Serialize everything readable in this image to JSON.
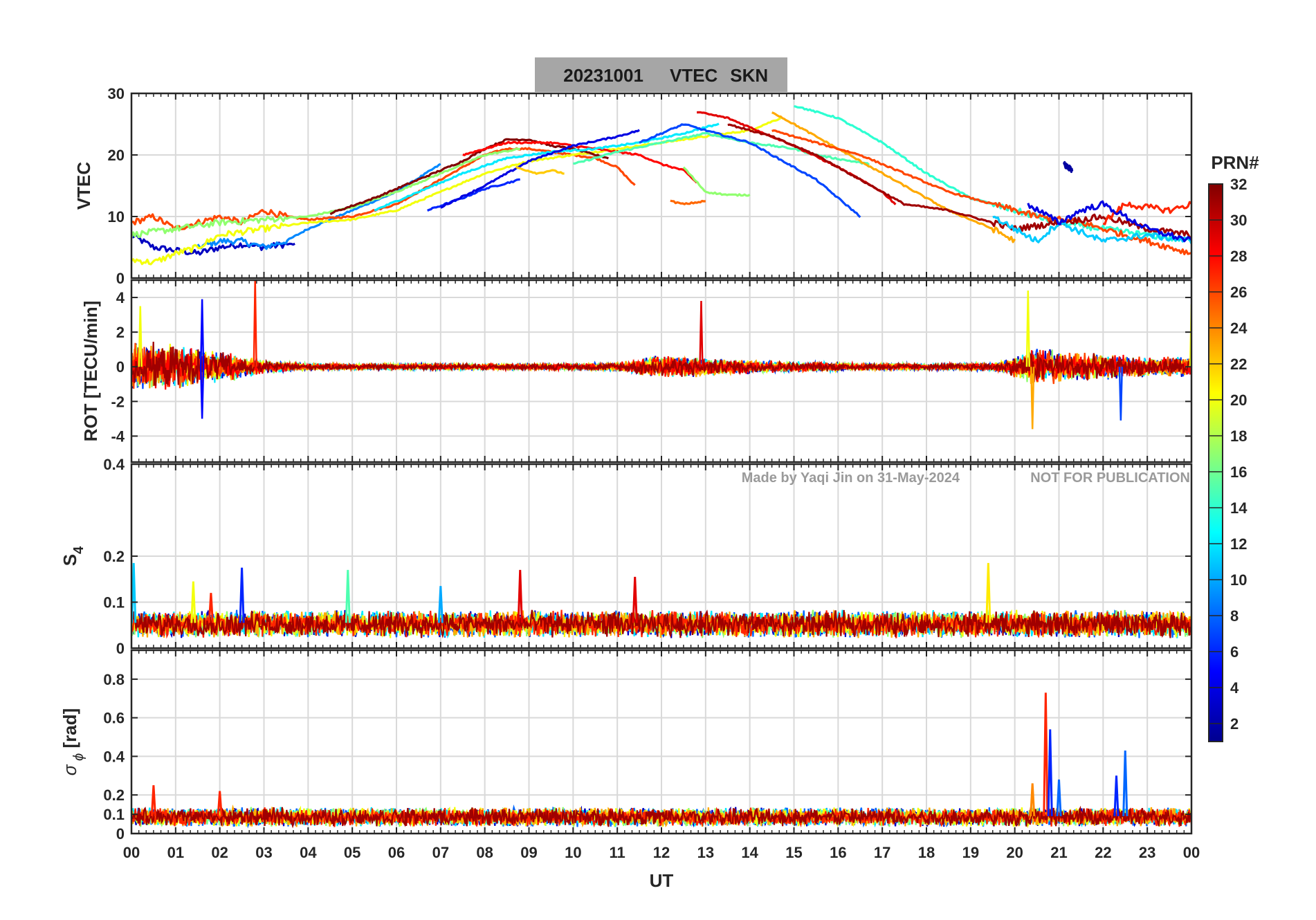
{
  "title": {
    "date": "20231001",
    "quantity": "VTEC",
    "station": "SKN",
    "box_color": "#a6a6a6"
  },
  "watermark": {
    "author": "Made by Yaqi Jin on 31-May-2024",
    "notice": "NOT FOR PUBLICATION"
  },
  "xaxis": {
    "label": "UT",
    "ticks": [
      "00",
      "01",
      "02",
      "03",
      "04",
      "05",
      "06",
      "07",
      "08",
      "09",
      "10",
      "11",
      "12",
      "13",
      "14",
      "15",
      "16",
      "17",
      "18",
      "19",
      "20",
      "21",
      "22",
      "23",
      "00"
    ],
    "range_hours": [
      0,
      24
    ]
  },
  "colorbar": {
    "label": "PRN#",
    "colormap": "jet",
    "range": [
      1,
      32
    ],
    "ticks": [
      "2",
      "4",
      "6",
      "8",
      "10",
      "12",
      "14",
      "16",
      "18",
      "20",
      "22",
      "24",
      "26",
      "28",
      "30",
      "32"
    ]
  },
  "chart_data": [
    {
      "type": "line",
      "panel": "vtec",
      "ylabel": "VTEC",
      "ylim": [
        0,
        30
      ],
      "yticks": [
        "0",
        "10",
        "20",
        "30"
      ],
      "grid": true,
      "series": [
        {
          "prn": 3,
          "x": [
            0,
            0.5,
            1,
            1.5,
            2,
            2.5,
            3,
            3.5,
            3.7
          ],
          "y": [
            7,
            5,
            4.5,
            4,
            5,
            5.5,
            5,
            5.5,
            5.5
          ]
        },
        {
          "prn": 9,
          "x": [
            1.5,
            2,
            2.5,
            3,
            3.5,
            4,
            5,
            6,
            7
          ],
          "y": [
            5,
            6,
            6,
            5,
            6,
            8,
            11,
            14,
            18.5
          ]
        },
        {
          "prn": 26,
          "x": [
            0,
            0.5,
            1,
            1.5,
            2,
            2.5,
            3,
            3.5,
            4,
            5,
            6,
            7,
            7.5,
            8,
            8.5,
            9,
            10,
            10.5,
            11,
            11.4
          ],
          "y": [
            9,
            10,
            8,
            9,
            10,
            9,
            11,
            10,
            9.5,
            10,
            12,
            16,
            18,
            20,
            21,
            21,
            20,
            19.5,
            18,
            15
          ]
        },
        {
          "prn": 20,
          "x": [
            0,
            0.5,
            1,
            1.5,
            2,
            3,
            4,
            5,
            6,
            7,
            8,
            9,
            10,
            11,
            12,
            13,
            14,
            14.7
          ],
          "y": [
            3,
            2.5,
            4,
            5,
            7,
            8,
            9,
            9.5,
            11,
            14,
            17,
            19,
            20,
            21,
            22,
            23,
            24,
            26
          ]
        },
        {
          "prn": 17,
          "x": [
            0,
            1,
            2,
            3,
            4,
            5,
            6,
            7,
            8,
            8.8
          ],
          "y": [
            7,
            8,
            9,
            9.5,
            10,
            11.5,
            14,
            17,
            20,
            21
          ]
        },
        {
          "prn": 6,
          "x": [
            6.7,
            7.5,
            8,
            8.8
          ],
          "y": [
            11,
            13,
            14.5,
            16
          ]
        },
        {
          "prn": 32,
          "x": [
            4.5,
            5.5,
            6.5,
            7.5,
            8,
            8.5,
            9,
            9.5,
            10,
            10.5,
            10.8
          ],
          "y": [
            10.5,
            13,
            16,
            19,
            21,
            22.5,
            22.5,
            21.5,
            21,
            20,
            19.5
          ]
        },
        {
          "prn": 28,
          "x": [
            7.5,
            8.5,
            9.5,
            10.5,
            11.5,
            12,
            12.5,
            12.8
          ],
          "y": [
            20,
            22,
            22,
            21,
            20,
            18.5,
            17.5,
            15.5
          ]
        },
        {
          "prn": 12,
          "x": [
            5.5,
            6.5,
            7.5,
            8.5,
            9.5,
            10.5,
            11.5,
            12.5,
            13,
            13.3
          ],
          "y": [
            11,
            14,
            17,
            19.5,
            20.5,
            21,
            22,
            23.5,
            24.5,
            25
          ]
        },
        {
          "prn": 4,
          "x": [
            7,
            8,
            9,
            10,
            11,
            11.5
          ],
          "y": [
            11.5,
            15,
            19,
            21.5,
            23,
            24
          ]
        },
        {
          "prn": 22,
          "x": [
            8.7,
            9.2,
            9.5,
            9.8
          ],
          "y": [
            18,
            17,
            17.5,
            17
          ]
        },
        {
          "prn": 15,
          "x": [
            10,
            11,
            12,
            13,
            14,
            15,
            15.5,
            16.7
          ],
          "y": [
            18.5,
            20.5,
            22,
            23.5,
            22,
            21,
            20,
            18.5
          ]
        },
        {
          "prn": 29,
          "x": [
            12.8,
            13.5,
            14,
            15,
            16,
            17,
            17.3
          ],
          "y": [
            27,
            26,
            24.5,
            21.5,
            18,
            14,
            12
          ]
        },
        {
          "prn": 7,
          "x": [
            11.5,
            12.5,
            13,
            14,
            14.5,
            15,
            15.5,
            16,
            16.5
          ],
          "y": [
            22,
            25,
            24,
            22,
            20,
            18,
            16,
            13,
            10
          ]
        },
        {
          "prn": 25,
          "x": [
            12.2,
            12.5,
            13
          ],
          "y": [
            12.5,
            12,
            12.5
          ]
        },
        {
          "prn": 17,
          "x": [
            12.5,
            13,
            13.5,
            14
          ],
          "y": [
            18,
            14,
            13.5,
            13.5
          ]
        },
        {
          "prn": 14,
          "x": [
            15,
            16,
            17,
            18,
            19,
            20,
            21,
            22,
            23,
            24
          ],
          "y": [
            28,
            26,
            22,
            17,
            13,
            11,
            9,
            8,
            7,
            6
          ]
        },
        {
          "prn": 23,
          "x": [
            14.5,
            15.5,
            16.5,
            17.5,
            18.5,
            19.5,
            20
          ],
          "y": [
            27,
            23,
            19,
            15,
            11,
            8,
            6
          ]
        },
        {
          "prn": 26,
          "x": [
            14.5,
            15.5,
            16.5,
            17.5,
            18.5,
            19.5,
            20.5,
            21.5,
            22.5,
            23.5,
            24
          ],
          "y": [
            24,
            22,
            20,
            17,
            14,
            12,
            10,
            9,
            7,
            5,
            4
          ]
        },
        {
          "prn": 31,
          "x": [
            13.5,
            14.5,
            15.5,
            16.5,
            17.5,
            18.5,
            19.5,
            20,
            21,
            22,
            23,
            24
          ],
          "y": [
            25,
            23,
            20,
            16,
            12,
            11,
            9,
            8,
            9,
            10,
            8,
            7
          ]
        },
        {
          "prn": 2,
          "x": [
            21.1,
            21.3
          ],
          "y": [
            18.5,
            17.5
          ]
        },
        {
          "prn": 11,
          "x": [
            19.5,
            20.5,
            21,
            22,
            23,
            24
          ],
          "y": [
            10,
            6,
            9,
            6,
            7,
            6
          ]
        },
        {
          "prn": 27,
          "x": [
            22,
            22.5,
            23,
            23.5,
            24
          ],
          "y": [
            9,
            12,
            11.5,
            11,
            12
          ]
        },
        {
          "prn": 4,
          "x": [
            20.3,
            21,
            21.5,
            22,
            23,
            24
          ],
          "y": [
            12,
            9,
            11,
            12,
            8,
            6
          ]
        }
      ]
    },
    {
      "type": "line",
      "panel": "rot",
      "ylabel": "ROT [TECU/min]",
      "ylim": [
        -5.5,
        5
      ],
      "yticks": [
        "-4",
        "-2",
        "0",
        "2",
        "4"
      ],
      "grid": true,
      "noise_envelope": {
        "x": [
          0,
          1,
          2,
          3,
          4,
          6,
          9,
          11,
          12,
          13,
          15,
          18,
          19.5,
          20,
          20.5,
          21,
          22,
          23,
          24
        ],
        "amp": [
          2.5,
          2.2,
          1.6,
          0.7,
          0.3,
          0.3,
          0.3,
          0.4,
          1.2,
          0.9,
          0.5,
          0.3,
          0.4,
          1.0,
          2.0,
          1.5,
          1.2,
          1.0,
          1.0
        ]
      },
      "spikes": [
        {
          "x": 0.2,
          "y": 3.5
        },
        {
          "x": 1.6,
          "y": 3.9
        },
        {
          "x": 1.6,
          "y": -3.0
        },
        {
          "x": 2.8,
          "y": 5.0
        },
        {
          "x": 12.9,
          "y": 3.8
        },
        {
          "x": 20.3,
          "y": 4.4
        },
        {
          "x": 20.4,
          "y": -3.6
        },
        {
          "x": 22.4,
          "y": -3.1
        },
        {
          "x": 24,
          "y": 3.6
        }
      ]
    },
    {
      "type": "line",
      "panel": "s4",
      "ylabel": "S4",
      "ylim": [
        0,
        0.4
      ],
      "yticks": [
        "0",
        "0.1",
        "0.2",
        "0.4"
      ],
      "grid": true,
      "baseline": 0.055,
      "spikes": [
        {
          "x": 0.05,
          "y": 0.185
        },
        {
          "x": 1.4,
          "y": 0.145
        },
        {
          "x": 1.8,
          "y": 0.12
        },
        {
          "x": 2.5,
          "y": 0.175
        },
        {
          "x": 4.9,
          "y": 0.17
        },
        {
          "x": 7.0,
          "y": 0.135
        },
        {
          "x": 8.8,
          "y": 0.17
        },
        {
          "x": 11.4,
          "y": 0.155
        },
        {
          "x": 19.4,
          "y": 0.185
        }
      ]
    },
    {
      "type": "line",
      "panel": "sigma_phi",
      "ylabel": "σ ϕ [rad]",
      "ylim": [
        0,
        0.95
      ],
      "yticks": [
        "0",
        "0.1",
        "0.2",
        "0.4",
        "0.6",
        "0.8"
      ],
      "grid": true,
      "baseline": 0.09,
      "spikes": [
        {
          "x": 0.5,
          "y": 0.25
        },
        {
          "x": 2.0,
          "y": 0.22
        },
        {
          "x": 20.4,
          "y": 0.26
        },
        {
          "x": 20.7,
          "y": 0.73
        },
        {
          "x": 20.8,
          "y": 0.54
        },
        {
          "x": 21.0,
          "y": 0.28
        },
        {
          "x": 22.3,
          "y": 0.3
        },
        {
          "x": 22.5,
          "y": 0.43
        }
      ]
    }
  ]
}
